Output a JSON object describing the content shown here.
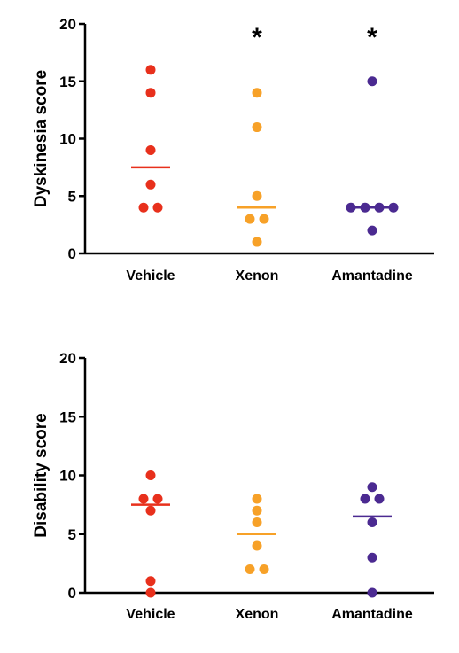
{
  "chart_data": [
    {
      "type": "scatter",
      "ylabel": "Dyskinesia score",
      "ylim": [
        0,
        20
      ],
      "yticks": [
        "0",
        "5",
        "10",
        "15",
        "20"
      ],
      "categories": [
        "Vehicle",
        "Xenon",
        "Amantadine"
      ],
      "grid": false,
      "series": [
        {
          "category": "Vehicle",
          "color": "#e8301c",
          "values": [
            16,
            14,
            9,
            6,
            4,
            4
          ],
          "median": 7.5,
          "annotation": ""
        },
        {
          "category": "Xenon",
          "color": "#f7a128",
          "values": [
            14,
            11,
            5,
            3,
            3,
            1
          ],
          "median": 4,
          "annotation": "*"
        },
        {
          "category": "Amantadine",
          "color": "#4b2a91",
          "values": [
            15,
            4,
            4,
            4,
            4,
            2
          ],
          "median": 4,
          "annotation": "*"
        }
      ]
    },
    {
      "type": "scatter",
      "ylabel": "Disability score",
      "ylim": [
        0,
        20
      ],
      "yticks": [
        "0",
        "5",
        "10",
        "15",
        "20"
      ],
      "categories": [
        "Vehicle",
        "Xenon",
        "Amantadine"
      ],
      "grid": false,
      "series": [
        {
          "category": "Vehicle",
          "color": "#e8301c",
          "values": [
            10,
            8,
            8,
            7,
            1,
            0
          ],
          "median": 7.5,
          "annotation": ""
        },
        {
          "category": "Xenon",
          "color": "#f7a128",
          "values": [
            8,
            7,
            6,
            4,
            2,
            2
          ],
          "median": 5,
          "annotation": ""
        },
        {
          "category": "Amantadine",
          "color": "#4b2a91",
          "values": [
            9,
            8,
            8,
            6,
            3,
            0
          ],
          "median": 6.5,
          "annotation": ""
        }
      ]
    }
  ]
}
